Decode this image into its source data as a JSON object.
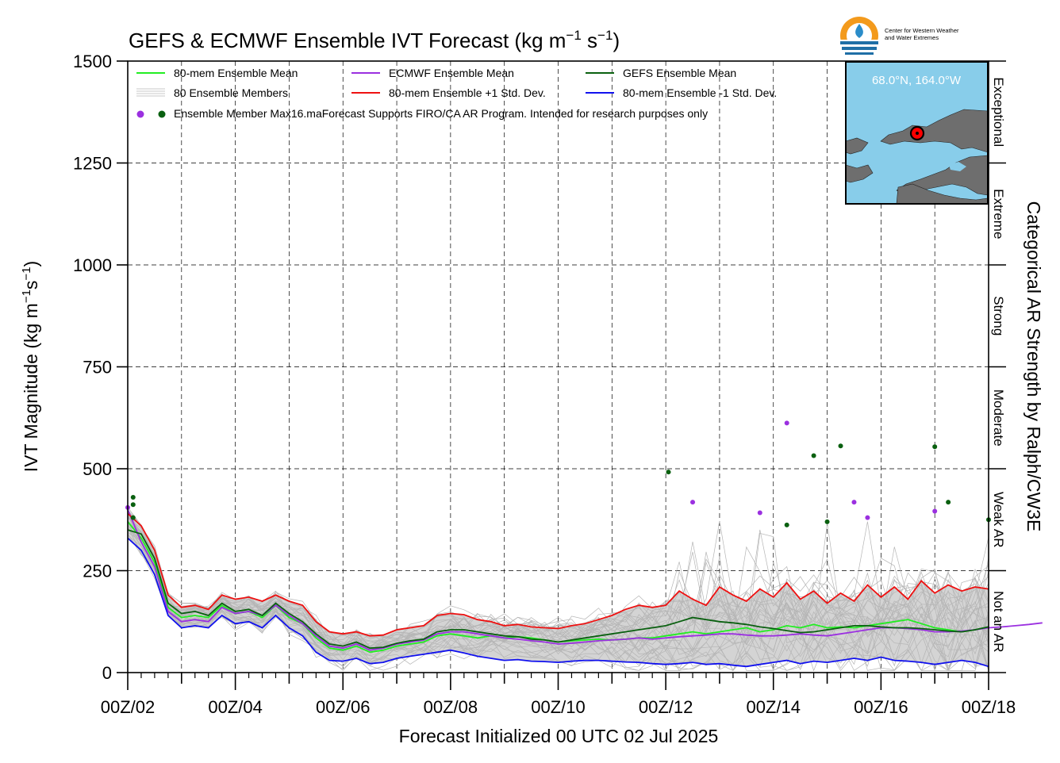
{
  "chart_data": {
    "type": "line",
    "title": "GEFS & ECMWF Ensemble IVT Forecast (kg m⁻¹ s⁻¹)",
    "title_parts": {
      "main": "GEFS & ECMWF Ensemble IVT Forecast (kg m",
      "sup1": "−1",
      "mid": " s",
      "sup2": "−1",
      "end": ")"
    },
    "xlabel": "Forecast Initialized 00 UTC 02 Jul 2025",
    "ylabel": "IVT Magnitude (kg m⁻¹s⁻¹)",
    "ylabel_parts": {
      "main": "IVT Magnitude (kg m",
      "sup1": "−1",
      "mid": "s",
      "sup2": "−1",
      "end": ")"
    },
    "right_label": "Categorical AR Strength by Ralph/CW3E",
    "ylim": [
      0,
      1500
    ],
    "xlim_days": [
      0,
      16
    ],
    "yticks": [
      0,
      250,
      500,
      750,
      1000,
      1250,
      1500
    ],
    "ytick_labels": [
      "0",
      "250",
      "500",
      "750",
      "1000",
      "1250",
      "1500"
    ],
    "xticks": [
      "00Z/02",
      "00Z/04",
      "00Z/06",
      "00Z/08",
      "00Z/10",
      "00Z/12",
      "00Z/14",
      "00Z/16",
      "00Z/18"
    ],
    "grid": true,
    "legend": [
      {
        "label": "80-mem Ensemble Mean",
        "color": "#22ee22"
      },
      {
        "label": "ECMWF Ensemble Mean",
        "color": "#9b30e0"
      },
      {
        "label": "GEFS Ensemble Mean",
        "color": "#0a6010"
      },
      {
        "label": "80 Ensemble Members",
        "color": "#b0b0b0"
      },
      {
        "label": "80-mem Ensemble +1 Std. Dev.",
        "color": "#ee1111"
      },
      {
        "label": "80-mem Ensemble -1 Std. Dev.",
        "color": "#1111ee"
      },
      {
        "label": "Ensemble Member Max",
        "color": "#9b30e0"
      }
    ],
    "legend_note": "16.maForecast Supports FIRO/CA AR Program. Intended for research purposes only",
    "legend_placement": "top-left",
    "categories_right": [
      {
        "label": "Not an AR",
        "range": [
          0,
          250
        ]
      },
      {
        "label": "Weak AR",
        "range": [
          250,
          500
        ]
      },
      {
        "label": "Moderate",
        "range": [
          500,
          750
        ]
      },
      {
        "label": "Strong",
        "range": [
          750,
          1000
        ]
      },
      {
        "label": "Extreme",
        "range": [
          1000,
          1250
        ]
      },
      {
        "label": "Exceptional",
        "range": [
          1250,
          1500
        ]
      }
    ],
    "series": [
      {
        "name": "80-mem Ensemble Mean",
        "color": "#22ee22",
        "x": [
          0,
          0.25,
          0.5,
          0.75,
          1,
          1.25,
          1.5,
          1.75,
          2,
          2.25,
          2.5,
          2.75,
          3,
          3.25,
          3.5,
          3.75,
          4,
          4.25,
          4.5,
          4.75,
          5,
          5.25,
          5.5,
          5.75,
          6,
          6.25,
          6.5,
          6.75,
          7,
          7.25,
          7.5,
          7.75,
          8,
          8.25,
          8.5,
          8.75,
          9,
          9.25,
          9.5,
          9.75,
          10,
          10.25,
          10.5,
          10.75,
          11,
          11.25,
          11.5,
          11.75,
          12,
          12.25,
          12.5,
          12.75,
          13,
          13.25,
          13.5,
          13.75,
          14,
          14.25,
          14.5,
          14.75,
          15,
          15.25,
          15.5,
          15.75,
          16
        ],
        "y": [
          370,
          330,
          270,
          160,
          135,
          140,
          135,
          165,
          145,
          150,
          135,
          165,
          135,
          120,
          85,
          60,
          55,
          65,
          50,
          55,
          65,
          70,
          75,
          90,
          95,
          90,
          85,
          90,
          85,
          88,
          85,
          80,
          75,
          78,
          80,
          82,
          80,
          82,
          85,
          85,
          90,
          95,
          100,
          95,
          100,
          105,
          110,
          100,
          105,
          115,
          110,
          118,
          110,
          112,
          110,
          115,
          120,
          125,
          130,
          120,
          110,
          105,
          100,
          105,
          112
        ]
      },
      {
        "name": "ECMWF Ensemble Mean",
        "color": "#9b30e0",
        "x": [
          0,
          0.25,
          0.5,
          0.75,
          1,
          1.25,
          1.5,
          1.75,
          2,
          2.25,
          2.5,
          2.75,
          3,
          3.25,
          3.5,
          3.75,
          4,
          4.25,
          4.5,
          4.75,
          5,
          5.25,
          5.5,
          5.75,
          6,
          6.25,
          6.5,
          6.75,
          7,
          7.25,
          7.5,
          7.75,
          8,
          8.25,
          8.5,
          8.75,
          9,
          9.25,
          9.5,
          9.75,
          10,
          10.25,
          10.5,
          10.75,
          11,
          11.25,
          11.5,
          11.75,
          12,
          12.25,
          12.5,
          12.75,
          13,
          13.25,
          13.5,
          13.75,
          14,
          14.25,
          14.5,
          14.75,
          15,
          15.25,
          15.5,
          15.75,
          16,
          16.25,
          16.5,
          16.75,
          17
        ],
        "y": [
          400,
          320,
          260,
          150,
          125,
          130,
          125,
          160,
          145,
          150,
          140,
          165,
          140,
          120,
          90,
          65,
          60,
          70,
          55,
          60,
          70,
          75,
          80,
          95,
          100,
          100,
          95,
          90,
          85,
          82,
          78,
          75,
          70,
          72,
          75,
          78,
          80,
          82,
          85,
          82,
          85,
          88,
          90,
          92,
          95,
          95,
          92,
          90,
          90,
          92,
          95,
          92,
          90,
          95,
          100,
          105,
          110,
          110,
          108,
          105,
          100,
          100,
          102,
          105,
          110,
          112,
          115,
          118,
          122
        ]
      },
      {
        "name": "GEFS Ensemble Mean",
        "color": "#0a6010",
        "x": [
          0,
          0.25,
          0.5,
          0.75,
          1,
          1.25,
          1.5,
          1.75,
          2,
          2.25,
          2.5,
          2.75,
          3,
          3.25,
          3.5,
          3.75,
          4,
          4.25,
          4.5,
          4.75,
          5,
          5.25,
          5.5,
          5.75,
          6,
          6.25,
          6.5,
          6.75,
          7,
          7.25,
          7.5,
          7.75,
          8,
          8.25,
          8.5,
          8.75,
          9,
          9.25,
          9.5,
          9.75,
          10,
          10.25,
          10.5,
          10.75,
          11,
          11.25,
          11.5,
          11.75,
          12,
          12.25,
          12.5,
          12.75,
          13,
          13.25,
          13.5,
          13.75,
          14,
          14.25,
          14.5,
          14.75,
          15,
          15.25,
          15.5,
          15.75,
          16
        ],
        "y": [
          350,
          340,
          280,
          170,
          145,
          150,
          140,
          170,
          150,
          155,
          140,
          170,
          145,
          125,
          95,
          70,
          65,
          75,
          60,
          62,
          72,
          78,
          82,
          100,
          105,
          105,
          100,
          95,
          90,
          88,
          82,
          80,
          75,
          80,
          85,
          90,
          95,
          100,
          105,
          110,
          115,
          125,
          135,
          130,
          125,
          122,
          118,
          112,
          108,
          103,
          98,
          100,
          105,
          110,
          115,
          115,
          112,
          110,
          110,
          108,
          105,
          102,
          100,
          105,
          112
        ]
      },
      {
        "name": "80-mem Ensemble +1 Std. Dev.",
        "color": "#ee1111",
        "x": [
          0,
          0.25,
          0.5,
          0.75,
          1,
          1.25,
          1.5,
          1.75,
          2,
          2.25,
          2.5,
          2.75,
          3,
          3.25,
          3.5,
          3.75,
          4,
          4.25,
          4.5,
          4.75,
          5,
          5.25,
          5.5,
          5.75,
          6,
          6.25,
          6.5,
          6.75,
          7,
          7.25,
          7.5,
          7.75,
          8,
          8.25,
          8.5,
          8.75,
          9,
          9.25,
          9.5,
          9.75,
          10,
          10.25,
          10.5,
          10.75,
          11,
          11.25,
          11.5,
          11.75,
          12,
          12.25,
          12.5,
          12.75,
          13,
          13.25,
          13.5,
          13.75,
          14,
          14.25,
          14.5,
          14.75,
          15,
          15.25,
          15.5,
          15.75,
          16
        ],
        "y": [
          390,
          360,
          300,
          190,
          160,
          165,
          155,
          190,
          180,
          185,
          175,
          190,
          175,
          165,
          125,
          100,
          95,
          100,
          90,
          92,
          105,
          110,
          115,
          140,
          145,
          142,
          130,
          125,
          115,
          118,
          112,
          110,
          108,
          115,
          120,
          130,
          140,
          155,
          165,
          160,
          165,
          200,
          180,
          165,
          210,
          190,
          175,
          205,
          185,
          220,
          180,
          200,
          170,
          195,
          175,
          215,
          185,
          210,
          180,
          225,
          195,
          215,
          200,
          210,
          205
        ]
      },
      {
        "name": "80-mem Ensemble -1 Std. Dev.",
        "color": "#1111ee",
        "x": [
          0,
          0.25,
          0.5,
          0.75,
          1,
          1.25,
          1.5,
          1.75,
          2,
          2.25,
          2.5,
          2.75,
          3,
          3.25,
          3.5,
          3.75,
          4,
          4.25,
          4.5,
          4.75,
          5,
          5.25,
          5.5,
          5.75,
          6,
          6.25,
          6.5,
          6.75,
          7,
          7.25,
          7.5,
          7.75,
          8,
          8.25,
          8.5,
          8.75,
          9,
          9.25,
          9.5,
          9.75,
          10,
          10.25,
          10.5,
          10.75,
          11,
          11.25,
          11.5,
          11.75,
          12,
          12.25,
          12.5,
          12.75,
          13,
          13.25,
          13.5,
          13.75,
          14,
          14.25,
          14.5,
          14.75,
          15,
          15.25,
          15.5,
          15.75,
          16
        ],
        "y": [
          330,
          300,
          240,
          140,
          110,
          115,
          110,
          140,
          120,
          125,
          110,
          140,
          110,
          90,
          50,
          30,
          28,
          35,
          22,
          25,
          35,
          40,
          45,
          50,
          55,
          48,
          40,
          35,
          30,
          32,
          28,
          27,
          25,
          28,
          30,
          30,
          28,
          26,
          25,
          22,
          20,
          22,
          25,
          20,
          22,
          18,
          15,
          20,
          25,
          30,
          22,
          28,
          25,
          30,
          35,
          30,
          38,
          30,
          28,
          25,
          20,
          25,
          30,
          25,
          15
        ]
      }
    ],
    "member_max_markers": {
      "ecmwf": {
        "color": "#9b30e0",
        "x": [
          0,
          10.5,
          11.75,
          12.25,
          13.5,
          13.75,
          15
        ],
        "y": [
          405,
          418,
          392,
          612,
          418,
          380,
          396
        ]
      },
      "gefs": {
        "color": "#0a6010",
        "x": [
          0.1,
          0.1,
          0.1,
          10.05,
          12.25,
          12.75,
          13,
          13.25,
          15,
          15.25,
          16
        ],
        "y": [
          430,
          412,
          380,
          492,
          362,
          532,
          370,
          556,
          554,
          418,
          375
        ]
      }
    },
    "inset_map": {
      "label": "68.0°N, 164.0°W",
      "ocean_color": "#88cdea",
      "land_color": "#6e6e6e"
    },
    "logo": {
      "line1": "Center for Western Weather",
      "line2": "and Water Extremes"
    }
  }
}
